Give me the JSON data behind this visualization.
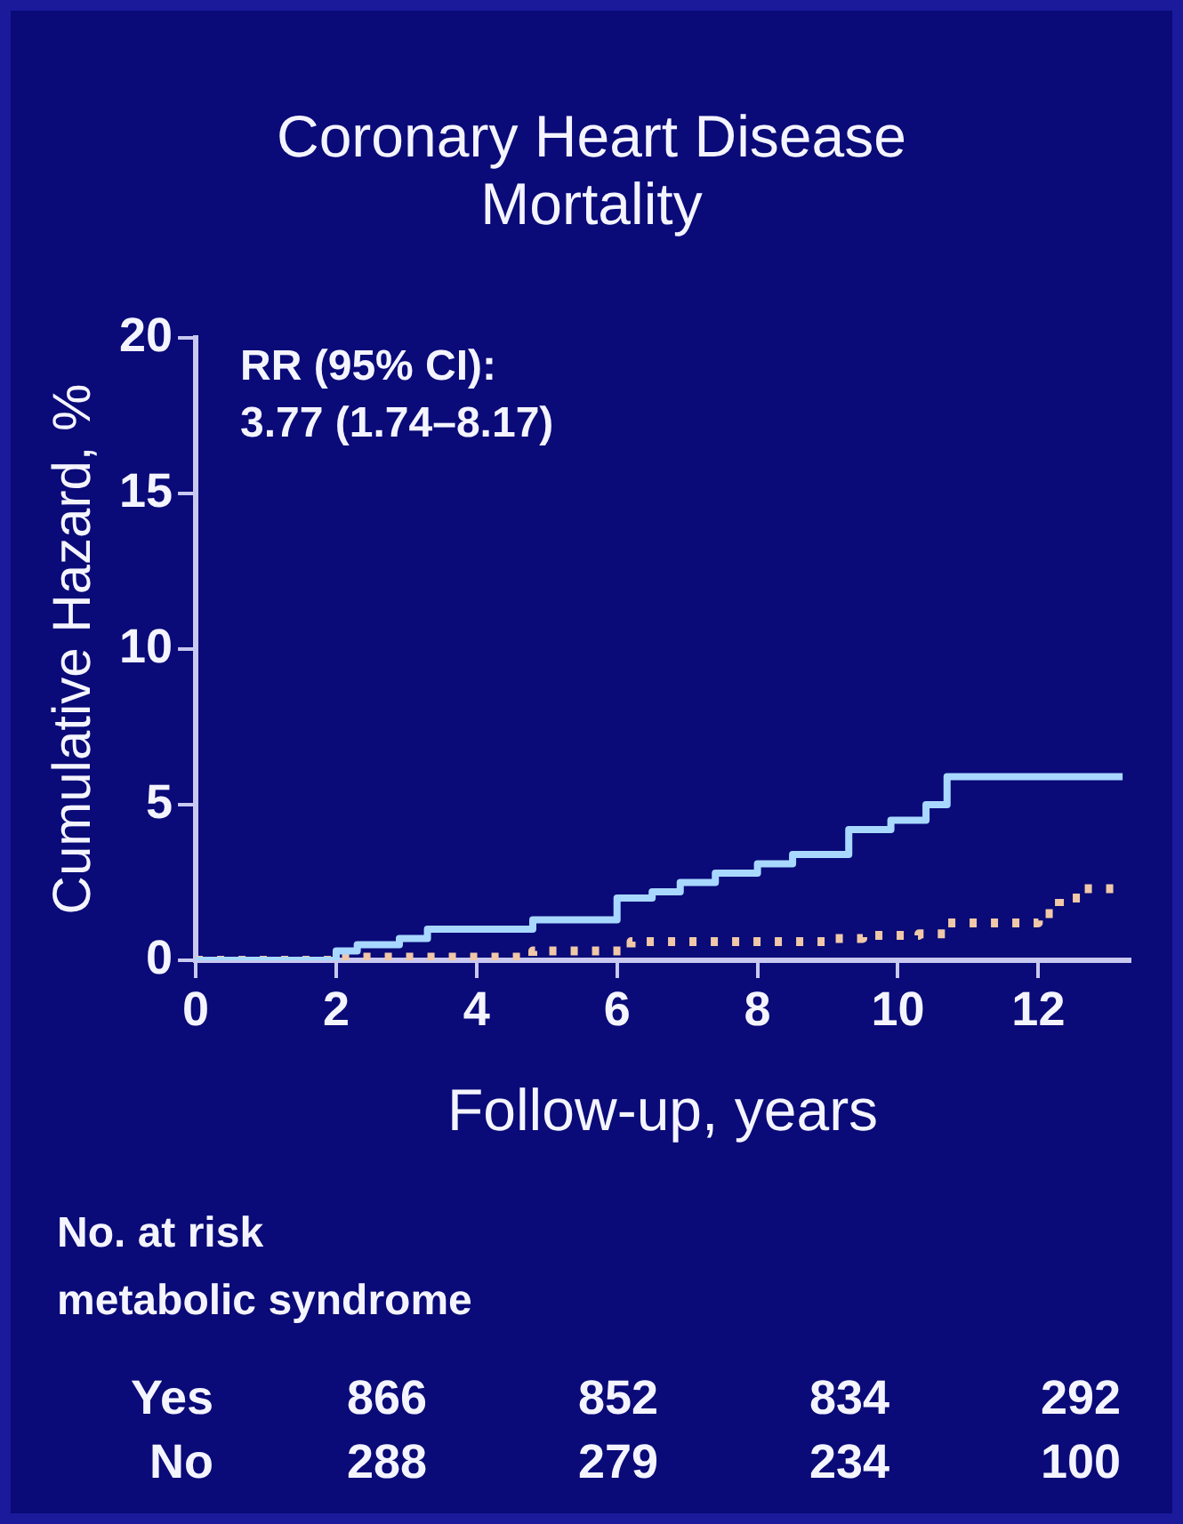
{
  "chart_data": {
    "type": "step",
    "title": "Coronary Heart Disease Mortality",
    "xlabel": "Follow-up, years",
    "ylabel": "Cumulative Hazard, %",
    "xlim": [
      0,
      13.3
    ],
    "xticks": [
      0,
      2,
      4,
      6,
      8,
      10,
      12
    ],
    "ylim": [
      0,
      20
    ],
    "yticks": [
      0,
      5,
      10,
      15,
      20
    ],
    "grid": false,
    "series": [
      {
        "color": "#a8d8ff",
        "line_style": "solid",
        "x": [
          0,
          2.0,
          2.3,
          2.9,
          3.3,
          4.8,
          6.0,
          6.5,
          6.9,
          7.4,
          8.0,
          8.5,
          9.3,
          9.9,
          10.4,
          10.7,
          13.2
        ],
        "values": [
          0,
          0.3,
          0.5,
          0.7,
          1.0,
          1.3,
          2.0,
          2.2,
          2.5,
          2.8,
          3.1,
          3.4,
          4.2,
          4.5,
          5.0,
          5.9,
          5.9
        ]
      },
      {
        "color": "#f0c8a8",
        "line_style": "dotted",
        "x": [
          0,
          2.0,
          4.8,
          6.2,
          9.0,
          9.5,
          10.3,
          10.7,
          12.0,
          12.3,
          12.6,
          13.2
        ],
        "values": [
          0,
          0.1,
          0.3,
          0.6,
          0.7,
          0.8,
          0.85,
          1.2,
          1.5,
          2.0,
          2.3,
          2.3
        ]
      }
    ],
    "annotations": [
      "RR (95% CI):",
      "3.77 (1.74–8.17)",
      "No. at risk",
      "metabolic syndrome",
      "Yes",
      "866",
      "852",
      "834",
      "292",
      "No",
      "288",
      "279",
      "234",
      "100"
    ]
  }
}
